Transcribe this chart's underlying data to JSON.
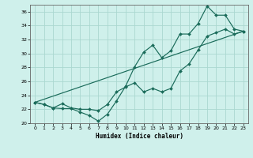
{
  "xlabel": "Humidex (Indice chaleur)",
  "xlim": [
    -0.5,
    23.5
  ],
  "ylim": [
    20,
    37
  ],
  "yticks": [
    20,
    22,
    24,
    26,
    28,
    30,
    32,
    34,
    36
  ],
  "xticks": [
    0,
    1,
    2,
    3,
    4,
    5,
    6,
    7,
    8,
    9,
    10,
    11,
    12,
    13,
    14,
    15,
    16,
    17,
    18,
    19,
    20,
    21,
    22,
    23
  ],
  "bg_color": "#cff0eb",
  "grid_color": "#aad8d0",
  "line_color": "#1a6b5a",
  "line1_x": [
    0,
    1,
    2,
    3,
    4,
    5,
    6,
    7,
    8,
    9,
    10,
    11,
    12,
    13,
    14,
    15,
    16,
    17,
    18,
    19,
    20,
    21,
    22,
    23
  ],
  "line1_y": [
    23,
    22.7,
    22.2,
    22.1,
    22.1,
    21.6,
    21.1,
    20.3,
    21.3,
    23.2,
    25.3,
    28.1,
    30.2,
    31.2,
    29.4,
    30.4,
    32.8,
    32.8,
    34.3,
    36.8,
    35.5,
    35.5,
    33.5,
    33.2
  ],
  "line2_x": [
    0,
    1,
    2,
    3,
    4,
    5,
    6,
    7,
    8,
    9,
    10,
    11,
    12,
    13,
    14,
    15,
    16,
    17,
    18,
    19,
    20,
    21,
    22,
    23
  ],
  "line2_y": [
    23,
    22.7,
    22.2,
    22.8,
    22.2,
    22.0,
    22.0,
    21.8,
    22.7,
    24.5,
    25.2,
    25.8,
    24.5,
    25.0,
    24.5,
    25.0,
    27.5,
    28.5,
    30.5,
    32.5,
    33.0,
    33.5,
    32.8,
    33.2
  ],
  "line3_x": [
    0,
    23
  ],
  "line3_y": [
    23,
    33.2
  ]
}
